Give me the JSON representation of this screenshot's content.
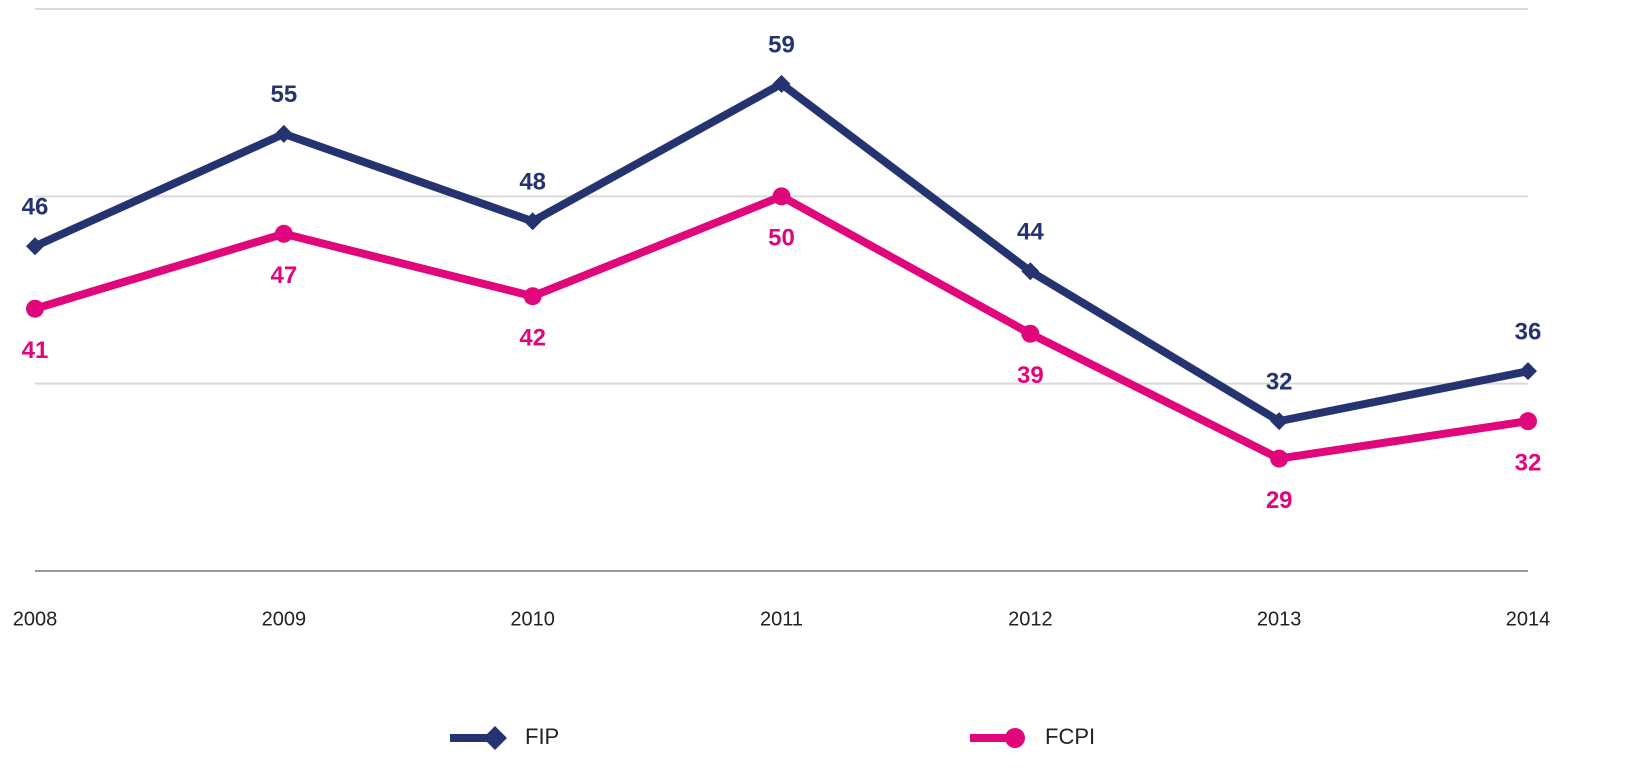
{
  "chart_data": {
    "type": "line",
    "categories": [
      "2008",
      "2009",
      "2010",
      "2011",
      "2012",
      "2013",
      "2014"
    ],
    "series": [
      {
        "name": "FIP",
        "color": "#253370",
        "marker": "diamond",
        "label_position": "above",
        "values": [
          46,
          55,
          48,
          59,
          44,
          32,
          36
        ]
      },
      {
        "name": "FCPI",
        "color": "#e0067b",
        "marker": "circle",
        "label_position": "below",
        "values": [
          41,
          47,
          42,
          50,
          39,
          29,
          32
        ]
      }
    ],
    "ylim": [
      20,
      65
    ],
    "yticks": [
      20,
      35,
      50,
      65
    ],
    "grid": true,
    "legend": "bottom"
  }
}
